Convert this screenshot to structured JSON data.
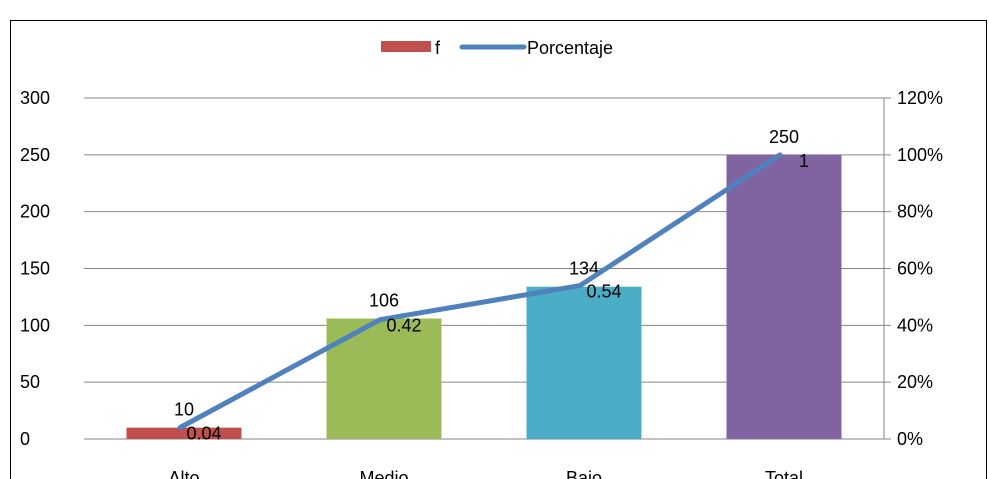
{
  "chart_data": {
    "type": "bar",
    "categories": [
      "Alto",
      "Medio",
      "Bajo",
      "Total"
    ],
    "bar_colors": [
      "#c0504d",
      "#9bbb59",
      "#4bacc6",
      "#8064a2"
    ],
    "line_color": "#4f81bd",
    "series": [
      {
        "name": "f",
        "type": "bar",
        "axis": "left",
        "values": [
          10,
          106,
          134,
          250
        ]
      },
      {
        "name": "Porcentaje",
        "type": "line",
        "axis": "right",
        "values": [
          0.04,
          0.42,
          0.54,
          1
        ]
      }
    ],
    "bar_labels": [
      "10",
      "106",
      "134",
      "250"
    ],
    "line_labels": [
      "0.04",
      "0.42",
      "0.54",
      "1"
    ],
    "y_left": {
      "min": 0,
      "max": 300,
      "ticks": [
        "0",
        "50",
        "100",
        "150",
        "200",
        "250",
        "300"
      ]
    },
    "y_right": {
      "min": 0,
      "max": 1.2,
      "ticks": [
        "0%",
        "20%",
        "40%",
        "60%",
        "80%",
        "100%",
        "120%"
      ]
    },
    "grid": true,
    "legend_position": "top-center",
    "legend": {
      "bar_label": "f",
      "line_label": "Porcentaje"
    }
  }
}
